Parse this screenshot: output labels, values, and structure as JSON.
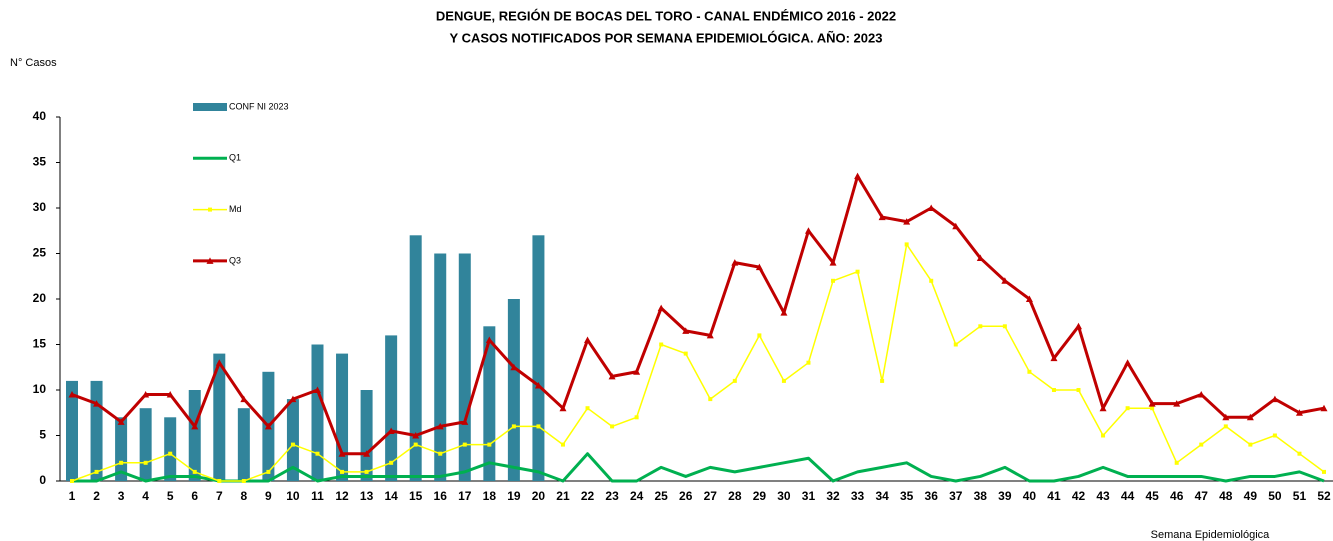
{
  "chart_data": {
    "type": "combo",
    "title": "DENGUE, REGIÓN DE BOCAS DEL TORO - CANAL ENDÉMICO 2016 - 2022",
    "subtitle": "Y CASOS NOTIFICADOS POR SEMANA EPIDEMIOLÓGICA. AÑO: 2023",
    "y_label": "N° Casos",
    "x_label": "Semana Epidemiológica",
    "categories": [
      "1",
      "2",
      "3",
      "4",
      "5",
      "6",
      "7",
      "8",
      "9",
      "10",
      "11",
      "12",
      "13",
      "14",
      "15",
      "16",
      "17",
      "18",
      "19",
      "20",
      "21",
      "22",
      "23",
      "24",
      "25",
      "26",
      "27",
      "28",
      "29",
      "30",
      "31",
      "32",
      "33",
      "34",
      "35",
      "36",
      "37",
      "38",
      "39",
      "40",
      "41",
      "42",
      "43",
      "44",
      "45",
      "46",
      "47",
      "48",
      "49",
      "50",
      "51",
      "52"
    ],
    "ylim": [
      0,
      40
    ],
    "yticks": [
      0,
      5,
      10,
      15,
      20,
      25,
      30,
      35,
      40
    ],
    "grid": false,
    "legend": "left",
    "series": [
      {
        "name": "CONF NI 2023",
        "kind": "bar",
        "color": "#31849b",
        "values": [
          11,
          11,
          7,
          8,
          7,
          10,
          14,
          8,
          12,
          9,
          15,
          14,
          10,
          16,
          27,
          25,
          25,
          17,
          20,
          27,
          null,
          null,
          null,
          null,
          null,
          null,
          null,
          null,
          null,
          null,
          null,
          null,
          null,
          null,
          null,
          null,
          null,
          null,
          null,
          null,
          null,
          null,
          null,
          null,
          null,
          null,
          null,
          null,
          null,
          null,
          null,
          null
        ]
      },
      {
        "name": "Q1",
        "kind": "line",
        "color": "#00b050",
        "marker": "none",
        "values": [
          0,
          0,
          1,
          0,
          0.5,
          0.5,
          0,
          0,
          0,
          1.5,
          0,
          0.5,
          0.5,
          0.5,
          0.5,
          0.5,
          1,
          2,
          1.5,
          1,
          0,
          3,
          0,
          0,
          1.5,
          0.5,
          1.5,
          1,
          1.5,
          2,
          2.5,
          0,
          1,
          1.5,
          2,
          0.5,
          0,
          0.5,
          1.5,
          0,
          0,
          0.5,
          1.5,
          0.5,
          0.5,
          0.5,
          0.5,
          0,
          0.5,
          0.5,
          1,
          0
        ]
      },
      {
        "name": "Md",
        "kind": "line",
        "color": "#ffff00",
        "marker": "square",
        "values": [
          0,
          1,
          2,
          2,
          3,
          1,
          0,
          0,
          1,
          4,
          3,
          1,
          1,
          2,
          4,
          3,
          4,
          4,
          6,
          6,
          4,
          8,
          6,
          7,
          15,
          14,
          9,
          11,
          16,
          11,
          13,
          22,
          23,
          11,
          26,
          22,
          15,
          17,
          17,
          12,
          10,
          10,
          5,
          8,
          8,
          2,
          4,
          6,
          4,
          5,
          3,
          1
        ]
      },
      {
        "name": "Q3",
        "kind": "line",
        "color": "#c00000",
        "marker": "triangle",
        "values": [
          9.5,
          8.5,
          6.5,
          9.5,
          9.5,
          6,
          13,
          9,
          6,
          9,
          10,
          3,
          3,
          5.5,
          5,
          6,
          6.5,
          15.5,
          12.5,
          10.5,
          8,
          15.5,
          11.5,
          12,
          19,
          16.5,
          16,
          24,
          23.5,
          18.5,
          27.5,
          24,
          33.5,
          29,
          28.5,
          30,
          28,
          24.5,
          22,
          20,
          13.5,
          17,
          8,
          13,
          8.5,
          8.5,
          9.5,
          7,
          7,
          9,
          7.5,
          8
        ]
      }
    ]
  }
}
